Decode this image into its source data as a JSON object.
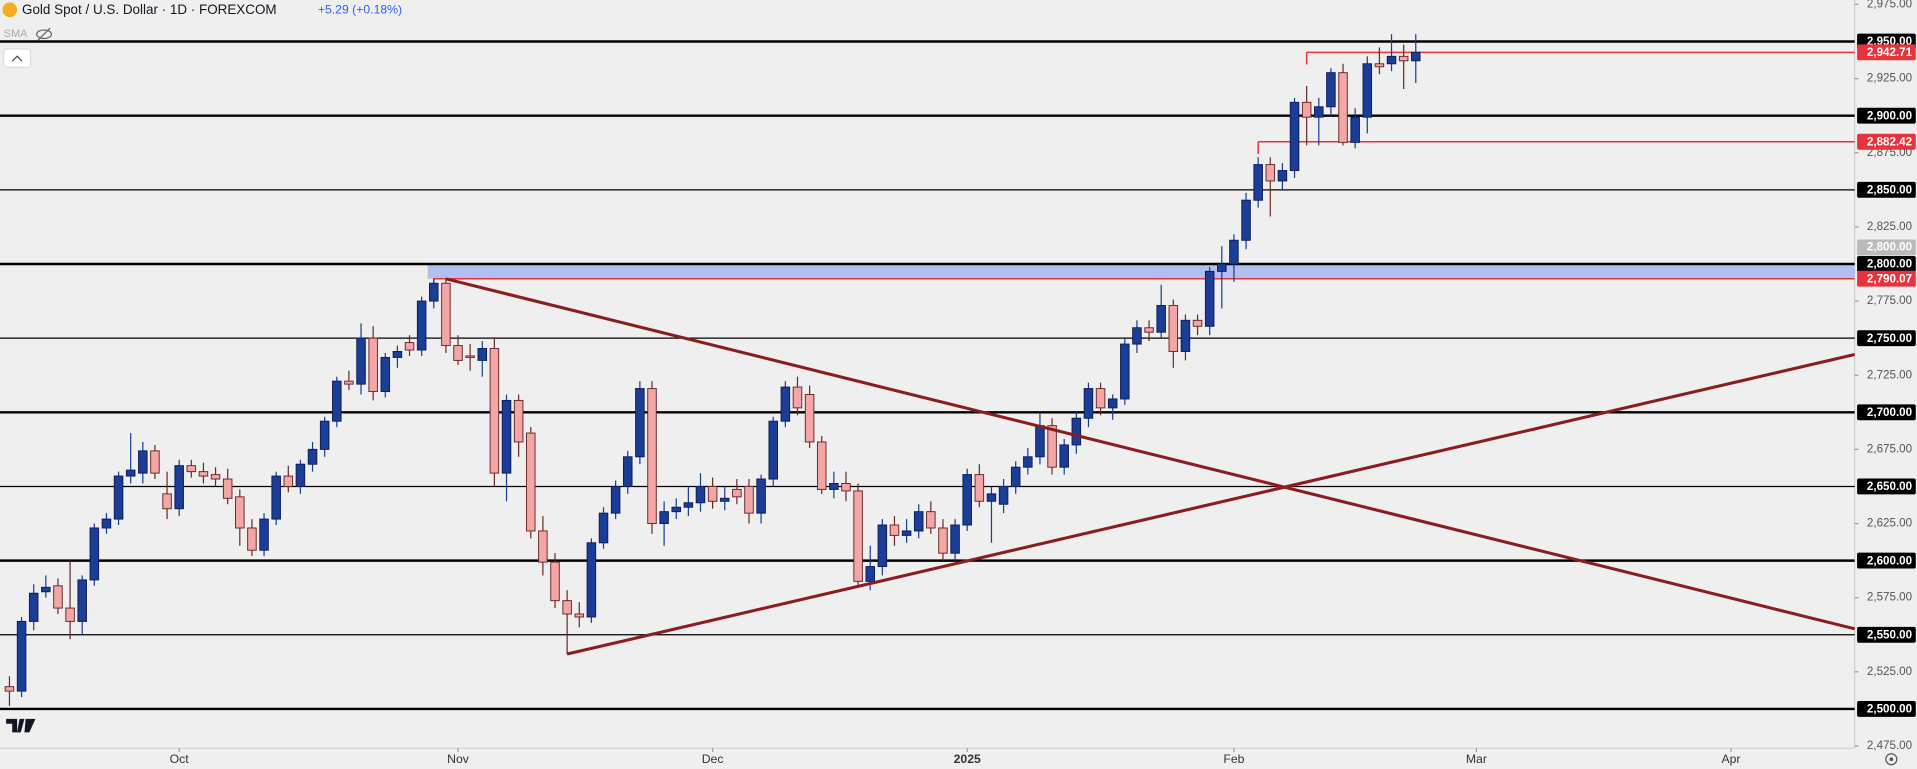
{
  "chart_data": {
    "type": "candlestick",
    "title": "Gold Spot / U.S. Dollar · 1D · FOREXCOM",
    "change": "+5.29 (+0.18%)",
    "indicator": "SMA",
    "colors": {
      "up": "#1c3d96",
      "down": "#f4a6a6",
      "mark": "#e8323c",
      "band": "#a8b6f0",
      "trend": "#8b1c1f"
    },
    "xlim": [
      -0.78,
      152.2
    ],
    "ylim": [
      2473.5,
      2978
    ],
    "xticks": [
      {
        "value": 14,
        "label": "Oct"
      },
      {
        "value": 37,
        "label": "Nov"
      },
      {
        "value": 58,
        "label": "Dec"
      },
      {
        "value": 79,
        "label": "2025"
      },
      {
        "value": 101,
        "label": "Feb"
      },
      {
        "value": 121,
        "label": "Mar"
      },
      {
        "value": 142,
        "label": "Apr"
      }
    ],
    "yticks": [
      {
        "value": 2975,
        "label": "2,975.00"
      },
      {
        "value": 2925,
        "label": "2,925.00"
      },
      {
        "value": 2875,
        "label": "2,875.00"
      },
      {
        "value": 2825,
        "label": "2,825.00"
      },
      {
        "value": 2775,
        "label": "2,775.00"
      },
      {
        "value": 2725,
        "label": "2,725.00"
      },
      {
        "value": 2675,
        "label": "2,675.00"
      },
      {
        "value": 2625,
        "label": "2,625.00"
      },
      {
        "value": 2575,
        "label": "2,575.00"
      },
      {
        "value": 2525,
        "label": "2,525.00"
      },
      {
        "value": 2475,
        "label": "2,475.00"
      }
    ],
    "levels": [
      {
        "value": 2950,
        "label": "2,950.00",
        "style": "major"
      },
      {
        "value": 2942.71,
        "label": "2,942.71",
        "style": "mark",
        "start": 107
      },
      {
        "value": 2900,
        "label": "2,900.00",
        "style": "major"
      },
      {
        "value": 2882.42,
        "label": "2,882.42",
        "style": "mark",
        "start": 103
      },
      {
        "value": 2850,
        "label": "2,850.00",
        "style": "minor"
      },
      {
        "value": 2800,
        "label": "2,800.00",
        "style": "major"
      },
      {
        "value": 2790.07,
        "label": "2,790.07",
        "style": "mark",
        "start": 35
      },
      {
        "value": 2750,
        "label": "2,750.00",
        "style": "minor"
      },
      {
        "value": 2700,
        "label": "2,700.00",
        "style": "major"
      },
      {
        "value": 2650,
        "label": "2,650.00",
        "style": "minor"
      },
      {
        "value": 2600,
        "label": "2,600.00",
        "style": "major"
      },
      {
        "value": 2550,
        "label": "2,550.00",
        "style": "minor"
      },
      {
        "value": 2500,
        "label": "2,500.00",
        "style": "major"
      }
    ],
    "band": {
      "start": 35,
      "from": 2790,
      "to": 2800,
      "label": "2,800.00"
    },
    "trendlines": [
      {
        "points": [
          [
            36,
            2790
          ],
          [
            152.2,
            2554
          ]
        ]
      },
      {
        "points": [
          [
            46,
            2537
          ],
          [
            152.2,
            2739
          ]
        ]
      }
    ],
    "candles": [
      [
        2515,
        2522,
        2502,
        2512
      ],
      [
        2512,
        2562,
        2508,
        2559
      ],
      [
        2559,
        2584,
        2553,
        2578
      ],
      [
        2579,
        2590,
        2575,
        2582
      ],
      [
        2583,
        2588,
        2564,
        2568
      ],
      [
        2568,
        2600,
        2547,
        2559
      ],
      [
        2559,
        2590,
        2550,
        2587
      ],
      [
        2587,
        2625,
        2583,
        2622
      ],
      [
        2622,
        2632,
        2618,
        2628
      ],
      [
        2628,
        2660,
        2624,
        2657
      ],
      [
        2657,
        2686,
        2652,
        2661
      ],
      [
        2659,
        2680,
        2652,
        2674
      ],
      [
        2674,
        2678,
        2655,
        2659
      ],
      [
        2645,
        2660,
        2628,
        2635
      ],
      [
        2635,
        2668,
        2630,
        2664
      ],
      [
        2664,
        2668,
        2656,
        2660
      ],
      [
        2660,
        2666,
        2652,
        2657
      ],
      [
        2658,
        2663,
        2650,
        2655
      ],
      [
        2655,
        2662,
        2638,
        2642
      ],
      [
        2643,
        2648,
        2610,
        2622
      ],
      [
        2622,
        2628,
        2603,
        2607
      ],
      [
        2607,
        2632,
        2603,
        2628
      ],
      [
        2628,
        2660,
        2624,
        2657
      ],
      [
        2657,
        2664,
        2646,
        2650
      ],
      [
        2650,
        2668,
        2645,
        2665
      ],
      [
        2665,
        2680,
        2660,
        2675
      ],
      [
        2675,
        2697,
        2670,
        2694
      ],
      [
        2694,
        2724,
        2690,
        2721
      ],
      [
        2721,
        2728,
        2715,
        2719
      ],
      [
        2719,
        2760,
        2712,
        2750
      ],
      [
        2750,
        2758,
        2708,
        2714
      ],
      [
        2714,
        2740,
        2710,
        2737
      ],
      [
        2737,
        2745,
        2730,
        2741
      ],
      [
        2747,
        2752,
        2738,
        2742
      ],
      [
        2742,
        2778,
        2738,
        2775
      ],
      [
        2775,
        2790,
        2770,
        2787
      ],
      [
        2787,
        2790,
        2740,
        2745
      ],
      [
        2745,
        2752,
        2732,
        2735
      ],
      [
        2738,
        2746,
        2728,
        2737
      ],
      [
        2735,
        2748,
        2724,
        2743
      ],
      [
        2743,
        2750,
        2650,
        2659
      ],
      [
        2659,
        2712,
        2640,
        2708
      ],
      [
        2708,
        2712,
        2670,
        2680
      ],
      [
        2686,
        2690,
        2615,
        2620
      ],
      [
        2620,
        2630,
        2590,
        2599
      ],
      [
        2599,
        2605,
        2568,
        2573
      ],
      [
        2573,
        2580,
        2537,
        2564
      ],
      [
        2564,
        2572,
        2555,
        2562
      ],
      [
        2562,
        2615,
        2558,
        2612
      ],
      [
        2612,
        2636,
        2608,
        2632
      ],
      [
        2632,
        2654,
        2628,
        2650
      ],
      [
        2650,
        2674,
        2645,
        2670
      ],
      [
        2670,
        2721,
        2665,
        2716
      ],
      [
        2716,
        2721,
        2618,
        2625
      ],
      [
        2625,
        2640,
        2610,
        2633
      ],
      [
        2633,
        2642,
        2628,
        2636
      ],
      [
        2636,
        2650,
        2630,
        2639
      ],
      [
        2639,
        2659,
        2633,
        2650
      ],
      [
        2650,
        2656,
        2635,
        2640
      ],
      [
        2640,
        2650,
        2634,
        2642
      ],
      [
        2648,
        2655,
        2638,
        2643
      ],
      [
        2650,
        2655,
        2625,
        2632
      ],
      [
        2632,
        2658,
        2625,
        2655
      ],
      [
        2655,
        2697,
        2650,
        2694
      ],
      [
        2694,
        2721,
        2690,
        2717
      ],
      [
        2717,
        2724,
        2698,
        2703
      ],
      [
        2712,
        2718,
        2676,
        2680
      ],
      [
        2680,
        2684,
        2645,
        2648
      ],
      [
        2648,
        2660,
        2642,
        2652
      ],
      [
        2652,
        2660,
        2640,
        2647
      ],
      [
        2647,
        2652,
        2582,
        2586
      ],
      [
        2586,
        2610,
        2580,
        2596
      ],
      [
        2596,
        2628,
        2590,
        2624
      ],
      [
        2624,
        2630,
        2610,
        2617
      ],
      [
        2617,
        2628,
        2612,
        2620
      ],
      [
        2620,
        2638,
        2615,
        2633
      ],
      [
        2633,
        2640,
        2618,
        2622
      ],
      [
        2622,
        2628,
        2600,
        2605
      ],
      [
        2605,
        2628,
        2600,
        2624
      ],
      [
        2624,
        2662,
        2620,
        2658
      ],
      [
        2658,
        2665,
        2636,
        2640
      ],
      [
        2640,
        2650,
        2612,
        2645
      ],
      [
        2638,
        2655,
        2632,
        2650
      ],
      [
        2650,
        2667,
        2645,
        2663
      ],
      [
        2663,
        2676,
        2658,
        2670
      ],
      [
        2670,
        2700,
        2665,
        2691
      ],
      [
        2691,
        2696,
        2658,
        2663
      ],
      [
        2663,
        2682,
        2658,
        2678
      ],
      [
        2678,
        2700,
        2672,
        2696
      ],
      [
        2696,
        2720,
        2690,
        2716
      ],
      [
        2716,
        2720,
        2698,
        2703
      ],
      [
        2703,
        2712,
        2695,
        2709
      ],
      [
        2709,
        2750,
        2705,
        2746
      ],
      [
        2746,
        2762,
        2740,
        2757
      ],
      [
        2757,
        2762,
        2748,
        2754
      ],
      [
        2754,
        2786,
        2750,
        2772
      ],
      [
        2772,
        2776,
        2730,
        2741
      ],
      [
        2741,
        2766,
        2735,
        2762
      ],
      [
        2762,
        2766,
        2752,
        2758
      ],
      [
        2758,
        2798,
        2752,
        2795
      ],
      [
        2795,
        2812,
        2770,
        2800
      ],
      [
        2800,
        2820,
        2788,
        2816
      ],
      [
        2816,
        2848,
        2810,
        2843
      ],
      [
        2843,
        2872,
        2838,
        2867
      ],
      [
        2867,
        2872,
        2832,
        2856
      ],
      [
        2856,
        2868,
        2850,
        2863
      ],
      [
        2863,
        2912,
        2858,
        2909
      ],
      [
        2909,
        2920,
        2880,
        2899
      ],
      [
        2899,
        2912,
        2880,
        2906
      ],
      [
        2906,
        2932,
        2900,
        2929
      ],
      [
        2929,
        2935,
        2880,
        2882
      ],
      [
        2882,
        2905,
        2878,
        2899
      ],
      [
        2899,
        2940,
        2888,
        2935
      ],
      [
        2935,
        2946,
        2928,
        2933
      ],
      [
        2935,
        2955,
        2930,
        2940
      ],
      [
        2940,
        2948,
        2918,
        2937
      ],
      [
        2937,
        2955,
        2922,
        2942.71
      ]
    ]
  }
}
